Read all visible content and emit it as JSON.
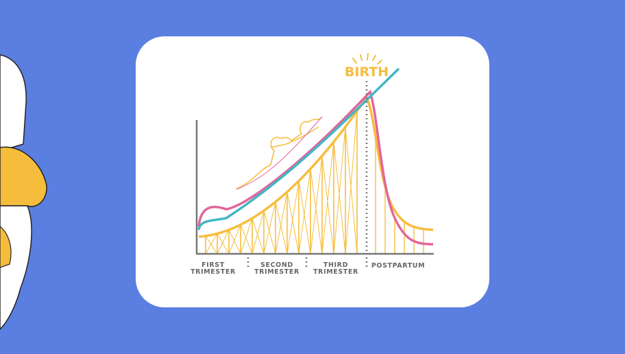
{
  "title": "BIRTH",
  "stages": [
    {
      "lines": [
        "FIRST",
        "TRIMESTER"
      ]
    },
    {
      "lines": [
        "SECOND",
        "TRIMESTER"
      ]
    },
    {
      "lines": [
        "THIRD",
        "TRIMESTER"
      ]
    },
    {
      "lines": [
        "POSTPARTUM"
      ]
    }
  ]
}
